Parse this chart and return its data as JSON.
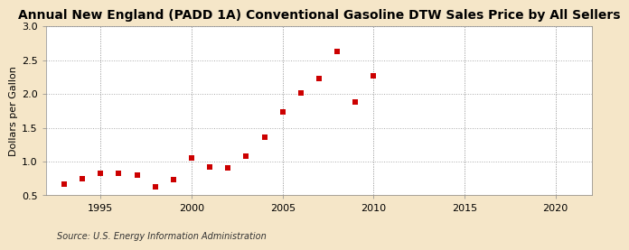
{
  "title": "Annual New England (PADD 1A) Conventional Gasoline DTW Sales Price by All Sellers",
  "ylabel": "Dollars per Gallon",
  "source": "Source: U.S. Energy Information Administration",
  "bg_color": "#f5e6c8",
  "plot_bg_color": "#ffffff",
  "marker_color": "#cc0000",
  "years": [
    1993,
    1994,
    1995,
    1996,
    1997,
    1998,
    1999,
    2000,
    2001,
    2002,
    2003,
    2004,
    2005,
    2006,
    2007,
    2008,
    2009,
    2010
  ],
  "values": [
    0.67,
    0.75,
    0.82,
    0.82,
    0.8,
    0.63,
    0.73,
    1.05,
    0.92,
    0.9,
    1.08,
    1.36,
    1.74,
    2.02,
    2.23,
    2.63,
    1.88,
    2.27
  ],
  "xlim": [
    1992,
    2022
  ],
  "ylim": [
    0.5,
    3.0
  ],
  "xticks": [
    1995,
    2000,
    2005,
    2010,
    2015,
    2020
  ],
  "yticks": [
    0.5,
    1.0,
    1.5,
    2.0,
    2.5,
    3.0
  ],
  "title_fontsize": 10,
  "label_fontsize": 8,
  "source_fontsize": 7
}
